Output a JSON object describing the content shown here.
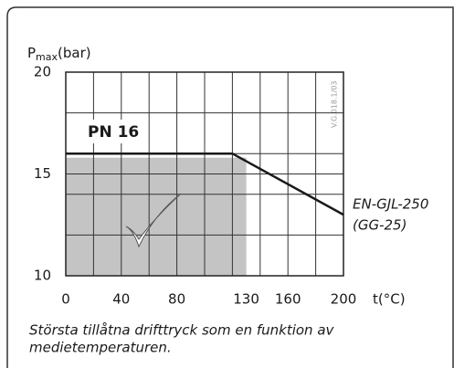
{
  "chart_data": {
    "type": "line",
    "y_label": {
      "main": "P",
      "sub": "max",
      "unit": "(bar)"
    },
    "x_label": "t(°C)",
    "code": "V.G.018.1/03",
    "pn_label": "PN 16",
    "series_label": [
      "EN-GJL-250",
      "(GG-25)"
    ],
    "caption": [
      "Största tillåtna drifttryck som en funktion av",
      "medietemperaturen."
    ],
    "series": [
      {
        "color": "#1a1a1a",
        "x": [
          0,
          120,
          200
        ],
        "values": [
          16,
          16,
          13
        ]
      }
    ],
    "shaded_area": {
      "color": "#c4c4c4",
      "xlim": [
        0,
        130
      ],
      "ylim": [
        10,
        15.8
      ]
    },
    "xlim": [
      0,
      200
    ],
    "xticks": [
      0,
      40,
      80,
      130,
      160,
      200
    ],
    "xgrid": [
      20,
      40,
      60,
      80,
      100,
      120,
      140,
      160,
      180
    ],
    "ylim": [
      10,
      20
    ],
    "yticks": [
      10,
      15,
      20
    ],
    "ygrid": [
      12,
      14,
      16,
      18
    ]
  }
}
